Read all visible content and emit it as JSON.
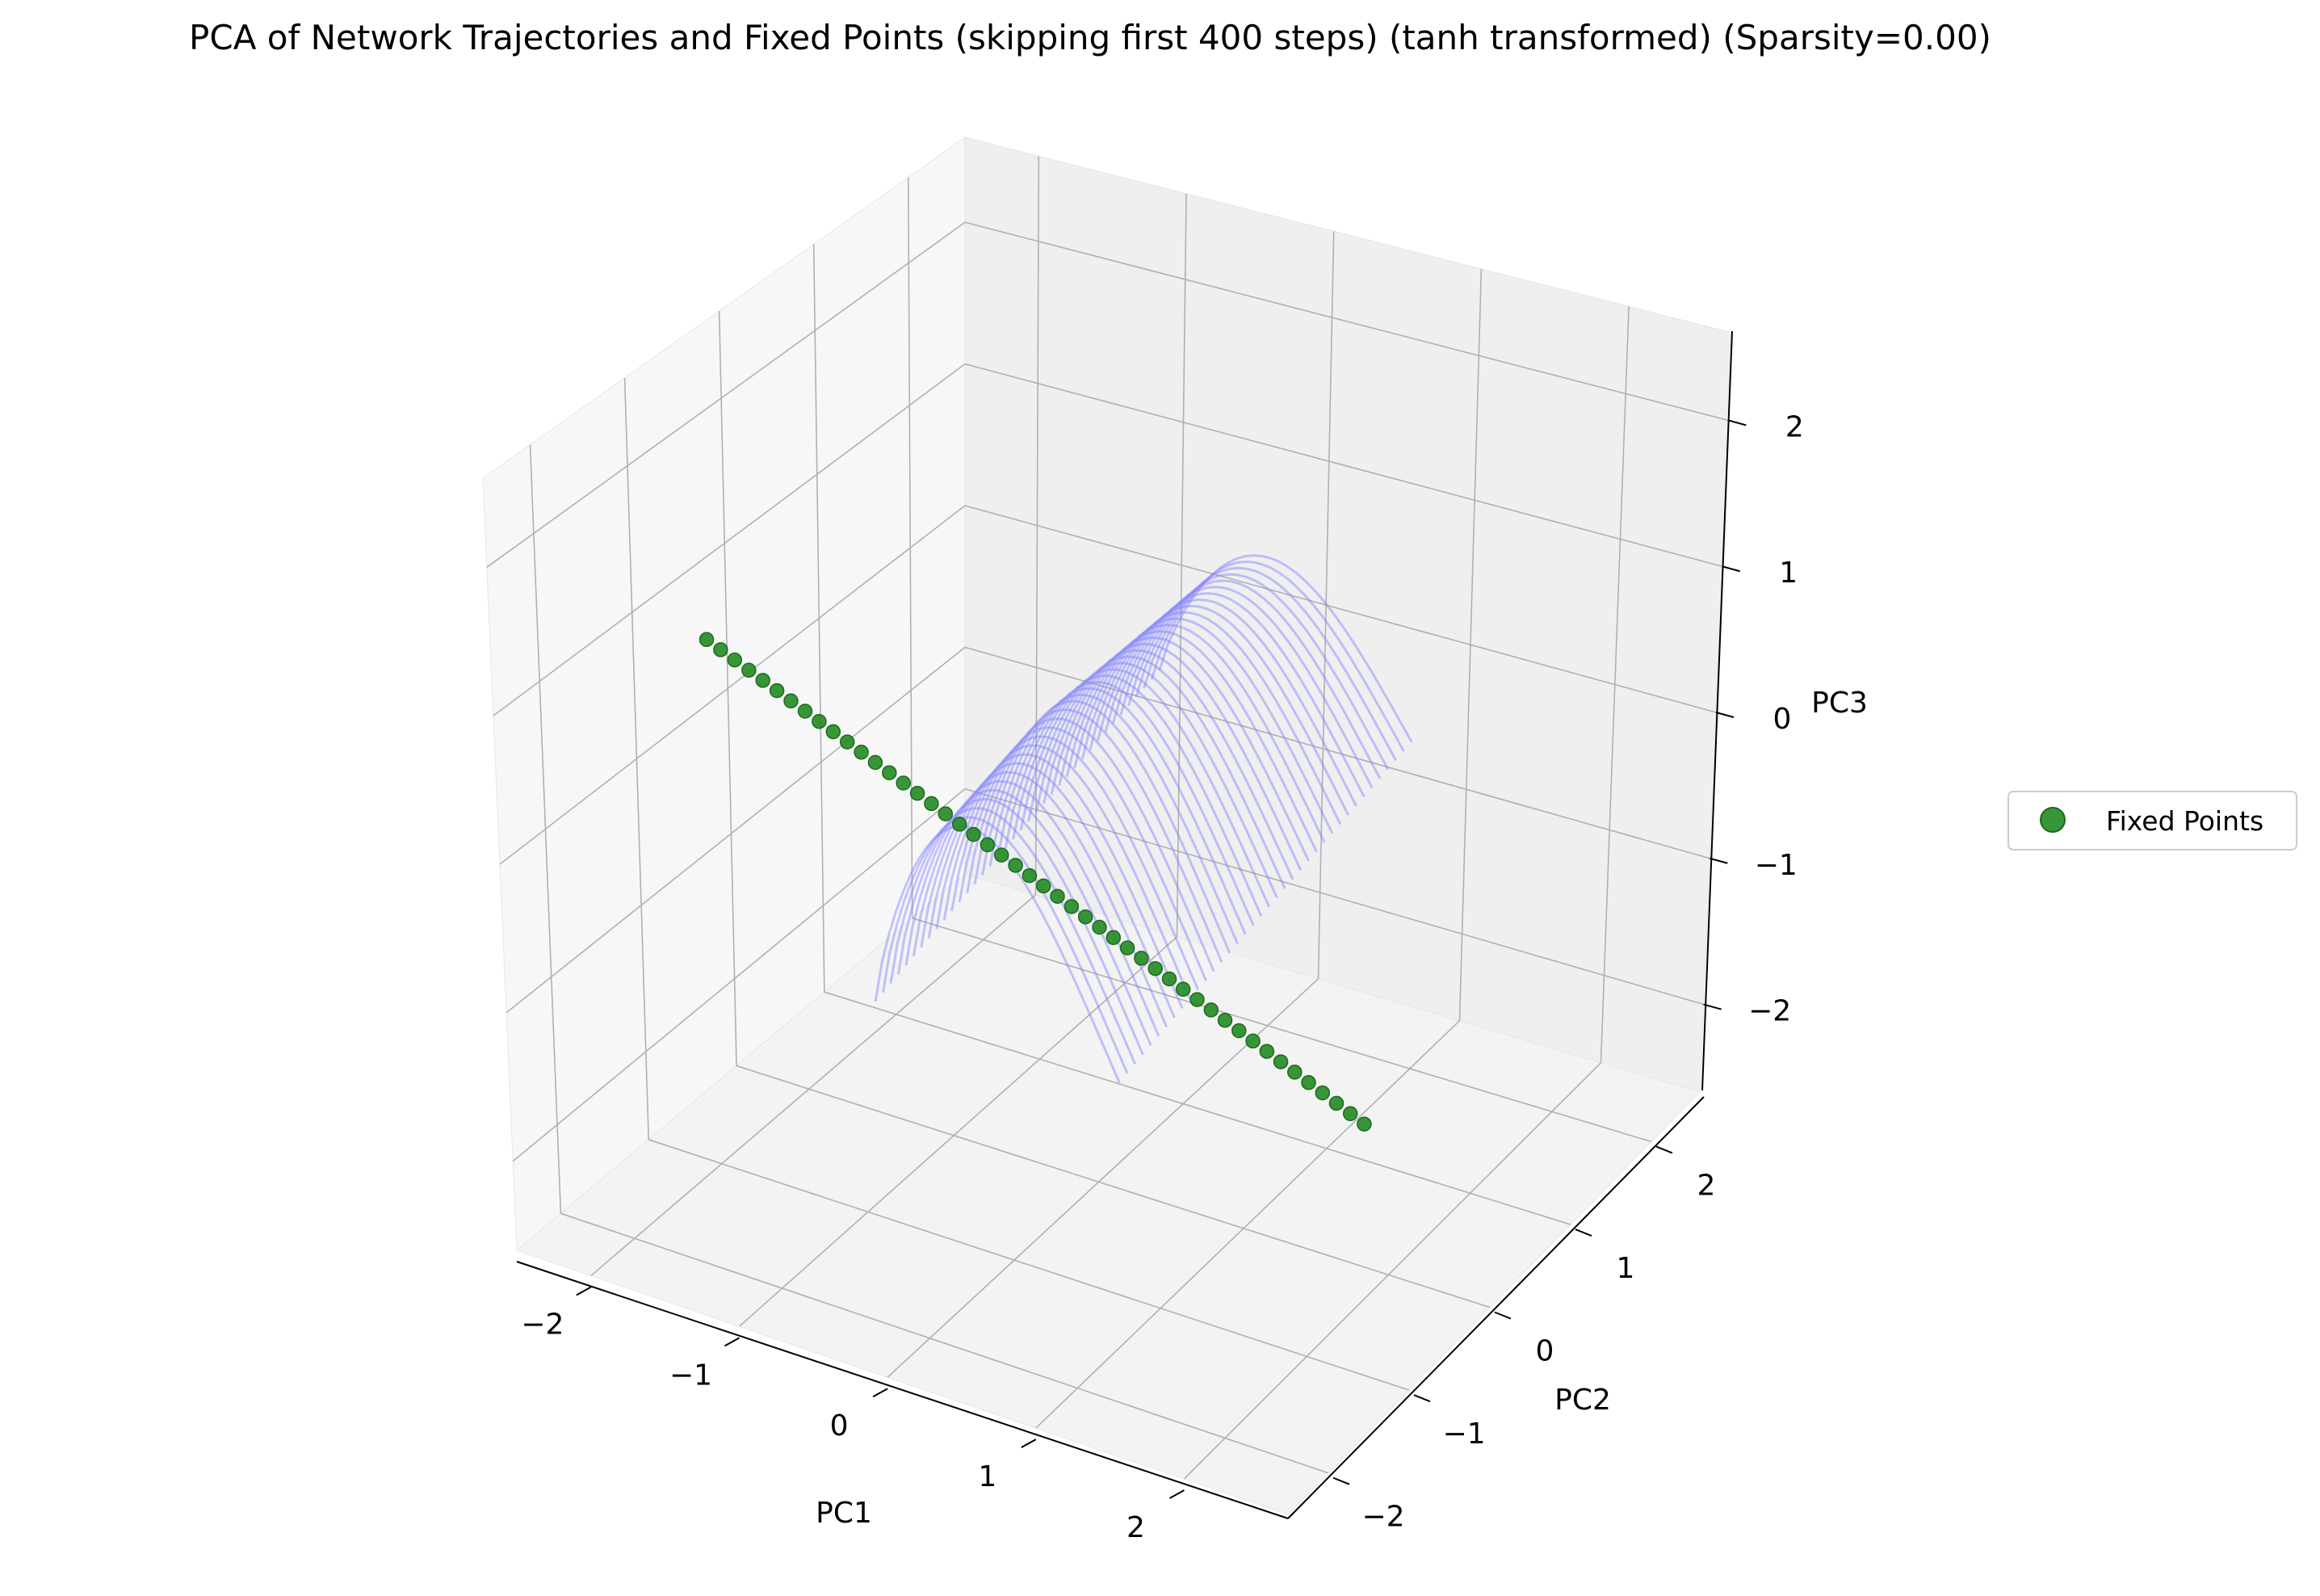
{
  "chart_data": {
    "type": "scatter",
    "projection": "3d",
    "title": "PCA of Network Trajectories and Fixed Points (skipping first 400 steps) (tanh transformed) (Sparsity=0.00)",
    "xlabel": "PC1",
    "ylabel": "PC2",
    "zlabel": "PC3",
    "xlim": [
      -2.5,
      2.7
    ],
    "ylim": [
      -2.5,
      2.6
    ],
    "zlim": [
      -2.6,
      2.6
    ],
    "xticks": [
      -2,
      -1,
      0,
      1,
      2
    ],
    "yticks": [
      -2,
      -1,
      0,
      1,
      2
    ],
    "zticks": [
      -2,
      -1,
      0,
      1,
      2
    ],
    "tick_labels": {
      "x": [
        "−2",
        "−1",
        "0",
        "1",
        "2"
      ],
      "y": [
        "−2",
        "−1",
        "0",
        "1",
        "2"
      ],
      "z": [
        "−2",
        "−1",
        "0",
        "1",
        "2"
      ]
    },
    "grid": true,
    "legend": {
      "placement": "right",
      "entries": [
        {
          "label": "Fixed Points",
          "marker": "circle",
          "color": "#228B22"
        }
      ]
    },
    "series": [
      {
        "name": "Fixed Points",
        "kind": "points",
        "color": "#228B22",
        "count": 48,
        "x_range": [
          -2.35,
          2.1
        ],
        "y": -0.45,
        "z_range": [
          -1.3,
          0.6
        ]
      },
      {
        "kind": "trajectories",
        "color": "#8080ff",
        "count": 38,
        "x_range": [
          -0.9,
          1.3
        ],
        "y_range": [
          2.2,
          -1.9
        ],
        "z_base": -0.5,
        "z_peak": 0.9
      }
    ]
  }
}
